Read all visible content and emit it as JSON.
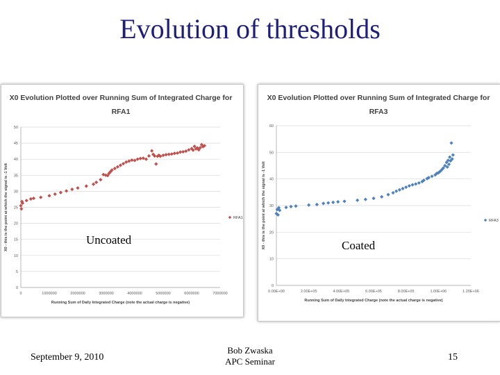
{
  "slide": {
    "title": "Evolution of thresholds",
    "footer_date": "September 9, 2010",
    "footer_author_line1": "Bob Zwaska",
    "footer_author_line2": "APC Seminar",
    "page_number": "15"
  },
  "chart_data": [
    {
      "type": "scatter",
      "title_line1": "X0 Evolution Plotted over Running Sum of Integrated Charge for",
      "title_line2": "RFA1",
      "xlabel": "Running Sum of Daily Integrated Charge (note the actual charge is negative)",
      "ylabel": "X0 - this is the point at which the signal is -1 Volt",
      "xlim": [
        0,
        7000000
      ],
      "ylim": [
        0,
        50
      ],
      "xticks": [
        "0",
        "1000000",
        "2000000",
        "3000000",
        "4000000",
        "5000000",
        "6000000",
        "7000000"
      ],
      "yticks": [
        "0",
        "5",
        "10",
        "15",
        "20",
        "25",
        "30",
        "35",
        "40",
        "45",
        "50"
      ],
      "legend": "RFA1",
      "legend_position": "right",
      "caption": "Uncoated",
      "color": "#c0504d",
      "x": [
        0,
        20000,
        40000,
        60000,
        200000,
        350000,
        450000,
        700000,
        1000000,
        1200000,
        1400000,
        1600000,
        1800000,
        2000000,
        2300000,
        2550000,
        2650000,
        2800000,
        2900000,
        2980000,
        3050000,
        3100000,
        3150000,
        3200000,
        3300000,
        3400000,
        3500000,
        3600000,
        3700000,
        3800000,
        3900000,
        4000000,
        4100000,
        4200000,
        4300000,
        4400000,
        4500000,
        4600000,
        4650000,
        4700000,
        4750000,
        4800000,
        4850000,
        4900000,
        5000000,
        5100000,
        5200000,
        5300000,
        5400000,
        5500000,
        5600000,
        5700000,
        5800000,
        5900000,
        6000000,
        6050000,
        6100000,
        6150000,
        6200000,
        6250000,
        6300000,
        6350000,
        6400000,
        6450000
      ],
      "y": [
        25.5,
        24.5,
        26.8,
        26.3,
        27.1,
        27.6,
        27.8,
        28.1,
        28.6,
        29.1,
        29.6,
        30.1,
        30.6,
        31.0,
        31.6,
        32.2,
        32.8,
        33.6,
        35.2,
        35.0,
        34.9,
        35.6,
        36.1,
        36.6,
        37.1,
        37.6,
        38.1,
        38.6,
        39.1,
        39.4,
        39.7,
        39.6,
        40.0,
        40.2,
        40.3,
        40.0,
        41.0,
        42.6,
        41.5,
        41.0,
        38.5,
        40.9,
        41.2,
        40.9,
        41.2,
        41.4,
        41.5,
        41.6,
        41.8,
        41.9,
        42.2,
        42.3,
        42.5,
        42.9,
        43.3,
        42.8,
        44.0,
        43.2,
        43.5,
        42.9,
        43.6,
        44.5,
        43.9,
        44.2
      ]
    },
    {
      "type": "scatter",
      "title_line1": "X0 Evolution Plotted over Running Sum of Integrated Charge for",
      "title_line2": "RFA3",
      "xlabel": "Running Sum of Daily Integrated Charge (note the actual charge is negative)",
      "ylabel": "X0 - this is the point at which the signal is -1 Volt",
      "xlim": [
        0,
        1200000
      ],
      "ylim": [
        0,
        60
      ],
      "xticks": [
        "0.00E+00",
        "2.00E+05",
        "4.00E+05",
        "6.00E+05",
        "8.00E+05",
        "1.00E+06",
        "1.20E+06"
      ],
      "yticks": [
        "0",
        "10",
        "20",
        "30",
        "40",
        "50",
        "60"
      ],
      "legend": "RFA3",
      "legend_position": "right",
      "caption": "Coated",
      "color": "#4f81bd",
      "x": [
        0,
        5000,
        10000,
        15000,
        20000,
        60000,
        90000,
        120000,
        200000,
        250000,
        290000,
        320000,
        350000,
        380000,
        420000,
        500000,
        550000,
        600000,
        650000,
        690000,
        720000,
        740000,
        760000,
        780000,
        800000,
        820000,
        840000,
        860000,
        880000,
        900000,
        910000,
        930000,
        940000,
        960000,
        980000,
        990000,
        1000000,
        1010000,
        1020000,
        1030000,
        1040000,
        1050000,
        1055000,
        1060000,
        1065000,
        1070000,
        1075000,
        1080000,
        1085000,
        1090000
      ],
      "y": [
        27,
        28.5,
        26.5,
        29.2,
        28.2,
        29.3,
        29.6,
        29.8,
        30.2,
        30.4,
        30.8,
        31.0,
        31.2,
        31.4,
        31.6,
        32.0,
        32.3,
        32.7,
        33.3,
        34.1,
        34.8,
        35.4,
        35.9,
        36.4,
        36.9,
        37.4,
        37.8,
        38.1,
        38.5,
        39.0,
        39.5,
        40.1,
        40.5,
        41.0,
        41.5,
        42.1,
        42.3,
        42.8,
        43.4,
        44.1,
        45.0,
        46.2,
        44.5,
        47.0,
        45.5,
        48.2,
        46.8,
        53.5,
        47.5,
        49.0
      ]
    }
  ]
}
